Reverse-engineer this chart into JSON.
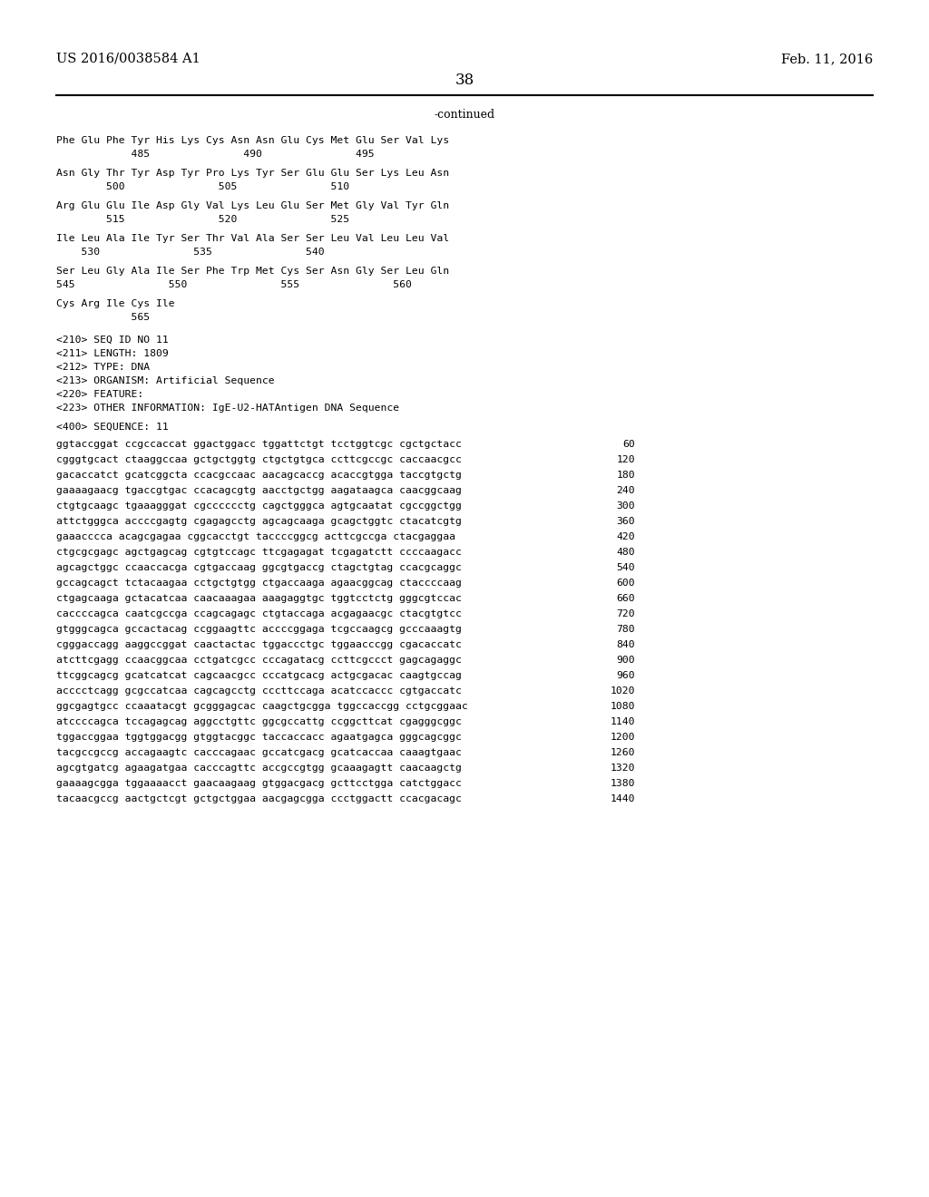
{
  "header_left": "US 2016/0038584 A1",
  "header_right": "Feb. 11, 2016",
  "page_number": "38",
  "continued_label": "-continued",
  "background_color": "#ffffff",
  "text_color": "#000000",
  "font_size_header": 10.5,
  "font_size_body": 9.0,
  "font_size_page": 12,
  "amino_acid_lines": [
    "Phe Glu Phe Tyr His Lys Cys Asn Asn Glu Cys Met Glu Ser Val Lys",
    "            485               490               495",
    "",
    "Asn Gly Thr Tyr Asp Tyr Pro Lys Tyr Ser Glu Glu Ser Lys Leu Asn",
    "        500               505               510",
    "",
    "Arg Glu Glu Ile Asp Gly Val Lys Leu Glu Ser Met Gly Val Tyr Gln",
    "        515               520               525",
    "",
    "Ile Leu Ala Ile Tyr Ser Thr Val Ala Ser Ser Leu Val Leu Leu Val",
    "    530               535               540",
    "",
    "Ser Leu Gly Ala Ile Ser Phe Trp Met Cys Ser Asn Gly Ser Leu Gln",
    "545               550               555               560",
    "",
    "Cys Arg Ile Cys Ile",
    "            565"
  ],
  "metadata_lines": [
    "<210> SEQ ID NO 11",
    "<211> LENGTH: 1809",
    "<212> TYPE: DNA",
    "<213> ORGANISM: Artificial Sequence",
    "<220> FEATURE:",
    "<223> OTHER INFORMATION: IgE-U2-HATAntigen DNA Sequence"
  ],
  "sequence_label": "<400> SEQUENCE: 11",
  "dna_lines": [
    [
      "ggtaccggat ccgccaccat ggactggacc tggattctgt tcctggtcgc cgctgctacc",
      "60"
    ],
    [
      "cgggtgcact ctaaggccaa gctgctggtg ctgctgtgca ccttcgccgc caccaacgcc",
      "120"
    ],
    [
      "gacaccatct gcatcggcta ccacgccaac aacagcaccg acaccgtgga taccgtgctg",
      "180"
    ],
    [
      "gaaaagaacg tgaccgtgac ccacagcgtg aacctgctgg aagataagca caacggcaag",
      "240"
    ],
    [
      "ctgtgcaagc tgaaagggat cgcccccctg cagctgggca agtgcaatat cgccggctgg",
      "300"
    ],
    [
      "attctgggca accccgagtg cgagagcctg agcagcaaga gcagctggtc ctacatcgtg",
      "360"
    ],
    [
      "gaaacccca acagcgagaa cggcacctgt taccccggcg acttcgccga ctacgaggaa",
      "420"
    ],
    [
      "ctgcgcgagc agctgagcag cgtgtccagc ttcgagagat tcgagatctt ccccaagacc",
      "480"
    ],
    [
      "agcagctggc ccaaccacga cgtgaccaag ggcgtgaccg ctagctgtag ccacgcaggc",
      "540"
    ],
    [
      "gccagcagct tctacaagaa cctgctgtgg ctgaccaaga agaacggcag ctaccccaag",
      "600"
    ],
    [
      "ctgagcaaga gctacatcaa caacaaagaa aaagaggtgc tggtcctctg gggcgtccac",
      "660"
    ],
    [
      "caccccagca caatcgccga ccagcagagc ctgtaccaga acgagaacgc ctacgtgtcc",
      "720"
    ],
    [
      "gtgggcagca gccactacag ccggaagttc accccggaga tcgccaagcg gcccaaagtg",
      "780"
    ],
    [
      "cgggaccagg aaggccggat caactactac tggaccctgc tggaacccgg cgacaccatc",
      "840"
    ],
    [
      "atcttcgagg ccaacggcaa cctgatcgcc cccagatacg ccttcgccct gagcagaggc",
      "900"
    ],
    [
      "ttcggcagcg gcatcatcat cagcaacgcc cccatgcacg actgcgacac caagtgccag",
      "960"
    ],
    [
      "acccctcagg gcgccatcaa cagcagcctg cccttccaga acatccaccc cgtgaccatc",
      "1020"
    ],
    [
      "ggcgagtgcc ccaaatacgt gcgggagcac caagctgcgga tggccaccgg cctgcggaac",
      "1080"
    ],
    [
      "atccccagca tccagagcag aggcctgttc ggcgccattg ccggcttcat cgagggcggc",
      "1140"
    ],
    [
      "tggaccggaa tggtggacgg gtggtacggc taccaccacc agaatgagca gggcagcggc",
      "1200"
    ],
    [
      "tacgccgccg accagaagtc cacccagaac gccatcgacg gcatcaccaa caaagtgaac",
      "1260"
    ],
    [
      "agcgtgatcg agaagatgaa cacccagttc accgccgtgg gcaaagagtt caacaagctg",
      "1320"
    ],
    [
      "gaaaagcgga tggaaaacct gaacaagaag gtggacgacg gcttcctgga catctggacc",
      "1380"
    ],
    [
      "tacaacgccg aactgctcgt gctgctggaa aacgagcgga ccctggactt ccacgacagc",
      "1440"
    ]
  ]
}
